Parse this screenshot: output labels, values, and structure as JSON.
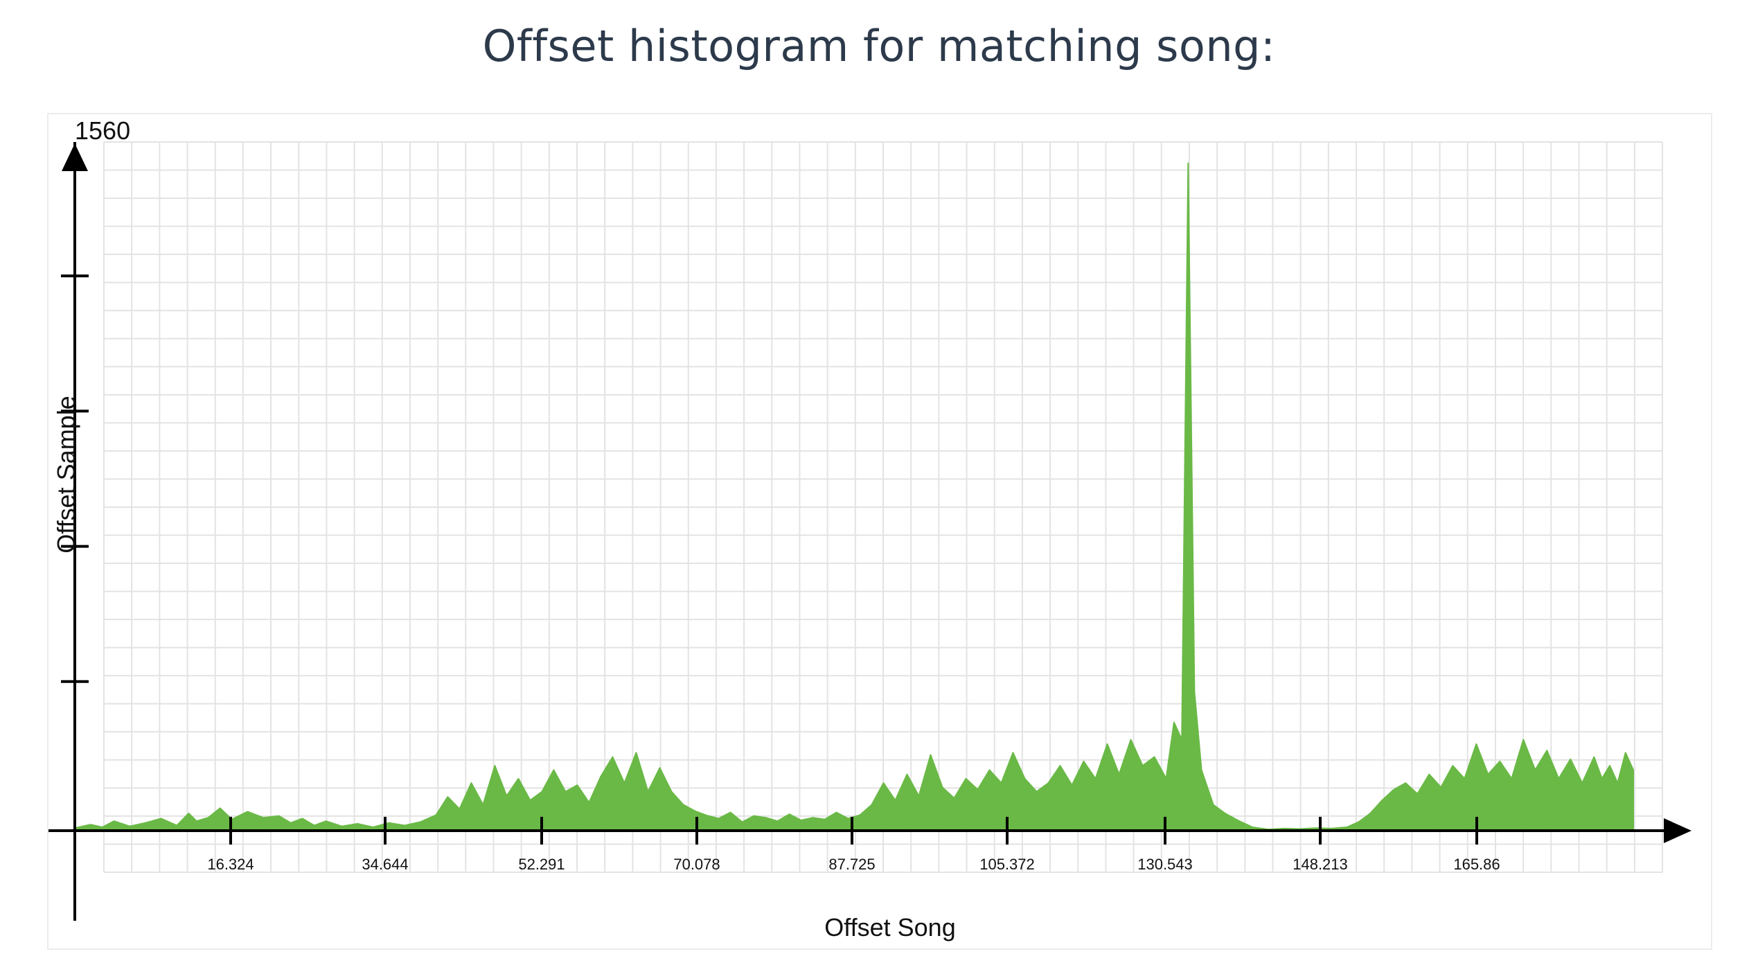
{
  "title": "Offset histogram for matching song:",
  "chart_data": {
    "type": "area",
    "xlabel": "Offset Song",
    "ylabel": "Offset Sample",
    "ymax_label": "1560",
    "ylim": [
      0,
      1560
    ],
    "xlim": [
      0,
      200
    ],
    "x_tick_labels": [
      "16.324",
      "34.644",
      "52.291",
      "70.078",
      "87.725",
      "105.372",
      "130.543",
      "148.213",
      "165.86"
    ],
    "y_ticks": [
      312,
      624,
      936,
      1248
    ],
    "grid": true,
    "series_color": "#6ab946",
    "series": [
      {
        "points": [
          [
            0.0,
            6
          ],
          [
            2.0,
            14
          ],
          [
            3.5,
            8
          ],
          [
            5.0,
            22
          ],
          [
            7.0,
            10
          ],
          [
            9.0,
            18
          ],
          [
            11.0,
            28
          ],
          [
            13.0,
            12
          ],
          [
            14.5,
            40
          ],
          [
            15.5,
            22
          ],
          [
            17.0,
            30
          ],
          [
            18.5,
            52
          ],
          [
            20.0,
            26
          ],
          [
            22.0,
            44
          ],
          [
            24.0,
            30
          ],
          [
            26.0,
            34
          ],
          [
            27.5,
            18
          ],
          [
            29.0,
            28
          ],
          [
            30.5,
            12
          ],
          [
            32.0,
            22
          ],
          [
            34.0,
            10
          ],
          [
            36.0,
            16
          ],
          [
            38.0,
            8
          ],
          [
            40.0,
            18
          ],
          [
            42.0,
            12
          ],
          [
            44.0,
            20
          ],
          [
            46.0,
            36
          ],
          [
            47.5,
            78
          ],
          [
            49.0,
            50
          ],
          [
            50.5,
            110
          ],
          [
            52.0,
            60
          ],
          [
            53.5,
            150
          ],
          [
            55.0,
            80
          ],
          [
            56.5,
            120
          ],
          [
            58.0,
            70
          ],
          [
            59.5,
            90
          ],
          [
            61.0,
            140
          ],
          [
            62.5,
            90
          ],
          [
            64.0,
            105
          ],
          [
            65.5,
            65
          ],
          [
            67.0,
            125
          ],
          [
            68.5,
            170
          ],
          [
            70.0,
            110
          ],
          [
            71.5,
            180
          ],
          [
            73.0,
            90
          ],
          [
            74.5,
            145
          ],
          [
            76.0,
            90
          ],
          [
            77.5,
            60
          ],
          [
            79.0,
            45
          ],
          [
            80.5,
            35
          ],
          [
            82.0,
            28
          ],
          [
            83.5,
            42
          ],
          [
            85.0,
            20
          ],
          [
            86.5,
            34
          ],
          [
            88.0,
            30
          ],
          [
            89.5,
            22
          ],
          [
            91.0,
            38
          ],
          [
            92.5,
            24
          ],
          [
            94.0,
            30
          ],
          [
            95.5,
            26
          ],
          [
            97.0,
            42
          ],
          [
            98.5,
            28
          ],
          [
            100.0,
            36
          ],
          [
            101.5,
            60
          ],
          [
            103.0,
            110
          ],
          [
            104.5,
            70
          ],
          [
            106.0,
            130
          ],
          [
            107.5,
            80
          ],
          [
            109.0,
            175
          ],
          [
            110.5,
            100
          ],
          [
            112.0,
            75
          ],
          [
            113.5,
            120
          ],
          [
            115.0,
            95
          ],
          [
            116.5,
            140
          ],
          [
            118.0,
            110
          ],
          [
            119.5,
            180
          ],
          [
            121.0,
            120
          ],
          [
            122.5,
            90
          ],
          [
            124.0,
            110
          ],
          [
            125.5,
            150
          ],
          [
            127.0,
            105
          ],
          [
            128.5,
            160
          ],
          [
            130.0,
            120
          ],
          [
            131.5,
            200
          ],
          [
            133.0,
            130
          ],
          [
            134.5,
            210
          ],
          [
            136.0,
            150
          ],
          [
            137.5,
            170
          ],
          [
            139.0,
            120
          ],
          [
            140.0,
            250
          ],
          [
            141.0,
            210
          ],
          [
            141.8,
            1540
          ],
          [
            142.6,
            320
          ],
          [
            143.5,
            140
          ],
          [
            145.0,
            60
          ],
          [
            146.5,
            40
          ],
          [
            148.0,
            25
          ],
          [
            150.0,
            8
          ],
          [
            152.0,
            3
          ],
          [
            154.0,
            5
          ],
          [
            156.0,
            4
          ],
          [
            158.0,
            6
          ],
          [
            160.0,
            5
          ],
          [
            162.0,
            8
          ],
          [
            163.5,
            20
          ],
          [
            165.0,
            40
          ],
          [
            166.5,
            70
          ],
          [
            168.0,
            95
          ],
          [
            169.5,
            110
          ],
          [
            171.0,
            85
          ],
          [
            172.5,
            130
          ],
          [
            174.0,
            100
          ],
          [
            175.5,
            150
          ],
          [
            177.0,
            120
          ],
          [
            178.5,
            200
          ],
          [
            180.0,
            130
          ],
          [
            181.5,
            160
          ],
          [
            183.0,
            120
          ],
          [
            184.5,
            210
          ],
          [
            186.0,
            140
          ],
          [
            187.5,
            185
          ],
          [
            189.0,
            120
          ],
          [
            190.5,
            165
          ],
          [
            192.0,
            110
          ],
          [
            193.5,
            170
          ],
          [
            194.5,
            120
          ],
          [
            195.5,
            150
          ],
          [
            196.5,
            110
          ],
          [
            197.5,
            180
          ],
          [
            198.5,
            140
          ]
        ]
      }
    ]
  }
}
